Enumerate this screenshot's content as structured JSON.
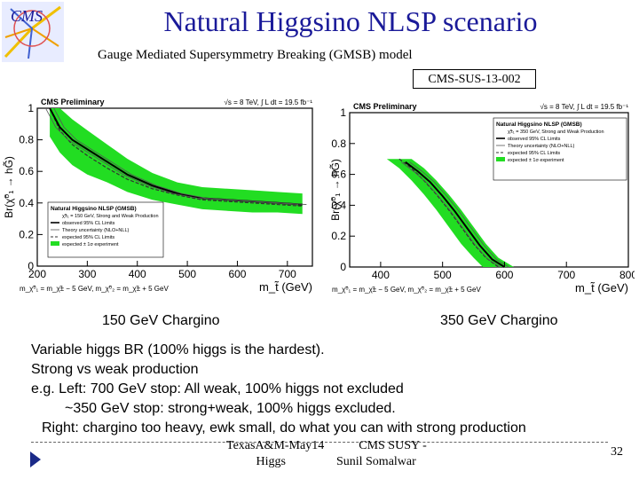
{
  "slide": {
    "title": "Natural Higgsino NLSP scenario",
    "subtitle": "Gauge Mediated Supersymmetry Breaking (GMSB) model",
    "reference": "CMS-SUS-13-002",
    "logo_text": "CMS",
    "page_number": "32"
  },
  "captions": {
    "left": "150 GeV Chargino",
    "right": "350 GeV Chargino"
  },
  "body": {
    "lines": [
      "Variable higgs BR (100% higgs is the hardest).",
      "Strong vs weak production",
      "e.g. Left: 700 GeV stop: All weak, 100% higgs not excluded",
      "~350 GeV stop: strong+weak, 100% higgs excluded.",
      "Right:  chargino too heavy, ewk small, do what you can with strong production"
    ]
  },
  "footer": {
    "line1a": "TexasA&M-May14",
    "line1b": "CMS SUSY -",
    "line2a": "Higgs",
    "line2b": "Sunil Somalwar"
  },
  "colors": {
    "title": "#1a1a99",
    "band": "#22dd22",
    "nav": "#1a2a88"
  },
  "chart_data": [
    {
      "type": "area",
      "panel": "left",
      "header": "CMS Preliminary",
      "energy": "√s = 8 TeV,  ∫ L dt = 19.5 fb⁻¹",
      "ylabel": "Br(χ̃⁰₁ → hG̃)",
      "xlabel": "m_t̃ (GeV)",
      "mass_note": "m_χ̃⁰₁ = m_χ̃± − 5 GeV, m_χ̃⁰₂ = m_χ̃± + 5 GeV",
      "xlim": [
        200,
        750
      ],
      "ylim": [
        0,
        1
      ],
      "x_ticks": [
        200,
        300,
        400,
        500,
        600,
        700
      ],
      "y_ticks": [
        0,
        0.2,
        0.4,
        0.6,
        0.8,
        1
      ],
      "legend_title": "Natural Higgsino NLSP (GMSB)",
      "legend": [
        "χ̃±₁ = 150 GeV, Strong and Weak Production",
        "observed 95% CL Limits",
        "Theory uncertainty (NLO+NLL)",
        "expected 95% CL Limits",
        "expected ± 1σ experiment"
      ],
      "series": [
        {
          "name": "observed",
          "x": [
            225,
            245,
            270,
            300,
            340,
            380,
            430,
            480,
            530,
            580,
            630,
            680,
            730
          ],
          "y": [
            1.0,
            0.88,
            0.8,
            0.74,
            0.66,
            0.58,
            0.51,
            0.46,
            0.43,
            0.42,
            0.41,
            0.4,
            0.39
          ]
        },
        {
          "name": "expected",
          "x": [
            225,
            245,
            270,
            300,
            340,
            380,
            430,
            480,
            530,
            580,
            630,
            680,
            730
          ],
          "y": [
            1.0,
            0.86,
            0.77,
            0.7,
            0.62,
            0.55,
            0.49,
            0.45,
            0.42,
            0.41,
            0.4,
            0.39,
            0.38
          ]
        },
        {
          "name": "band_upper",
          "x": [
            225,
            245,
            270,
            300,
            340,
            380,
            430,
            480,
            530,
            580,
            630,
            680,
            730
          ],
          "y": [
            1.0,
            1.0,
            0.93,
            0.86,
            0.77,
            0.68,
            0.59,
            0.53,
            0.5,
            0.49,
            0.48,
            0.47,
            0.46
          ]
        },
        {
          "name": "band_lower",
          "x": [
            225,
            245,
            270,
            300,
            340,
            380,
            430,
            480,
            530,
            580,
            630,
            680,
            730
          ],
          "y": [
            0.82,
            0.72,
            0.64,
            0.58,
            0.53,
            0.47,
            0.42,
            0.39,
            0.36,
            0.35,
            0.34,
            0.34,
            0.33
          ]
        }
      ]
    },
    {
      "type": "area",
      "panel": "right",
      "header": "CMS Preliminary",
      "energy": "√s = 8 TeV,  ∫ L dt = 19.5 fb⁻¹",
      "ylabel": "Br(χ̃⁰₁ → hG̃)",
      "xlabel": "m_t̃ (GeV)",
      "mass_note": "m_χ̃⁰₁ = m_χ̃± − 5 GeV, m_χ̃⁰₂ = m_χ̃± + 5 GeV",
      "xlim": [
        350,
        800
      ],
      "ylim": [
        0,
        1
      ],
      "x_ticks": [
        400,
        500,
        600,
        700,
        800
      ],
      "y_ticks": [
        0,
        0.2,
        0.4,
        0.6,
        0.8,
        1
      ],
      "legend_title": "Natural Higgsino NLSP (GMSB)",
      "legend": [
        "χ̃±₁ = 350 GeV, Strong and Weak Production",
        "observed 95% CL Limits",
        "Theory uncertainty (NLO+NLL)",
        "expected 95% CL Limits",
        "expected ± 1σ experiment"
      ],
      "series": [
        {
          "name": "observed",
          "x": [
            440,
            460,
            480,
            500,
            520,
            540,
            560,
            580,
            600
          ],
          "y": [
            0.68,
            0.62,
            0.55,
            0.46,
            0.36,
            0.25,
            0.14,
            0.05,
            0.0
          ]
        },
        {
          "name": "expected",
          "x": [
            430,
            450,
            470,
            490,
            510,
            530,
            550,
            570,
            590
          ],
          "y": [
            0.7,
            0.64,
            0.56,
            0.47,
            0.37,
            0.26,
            0.15,
            0.06,
            0.0
          ]
        },
        {
          "name": "band_upper",
          "x": [
            450,
            470,
            490,
            510,
            530,
            550,
            570,
            590,
            615
          ],
          "y": [
            0.7,
            0.64,
            0.56,
            0.47,
            0.37,
            0.26,
            0.15,
            0.06,
            0.0
          ]
        },
        {
          "name": "band_lower",
          "x": [
            410,
            430,
            450,
            470,
            490,
            510,
            530,
            550,
            565
          ],
          "y": [
            0.7,
            0.64,
            0.56,
            0.47,
            0.37,
            0.26,
            0.15,
            0.06,
            0.0
          ]
        }
      ]
    }
  ]
}
